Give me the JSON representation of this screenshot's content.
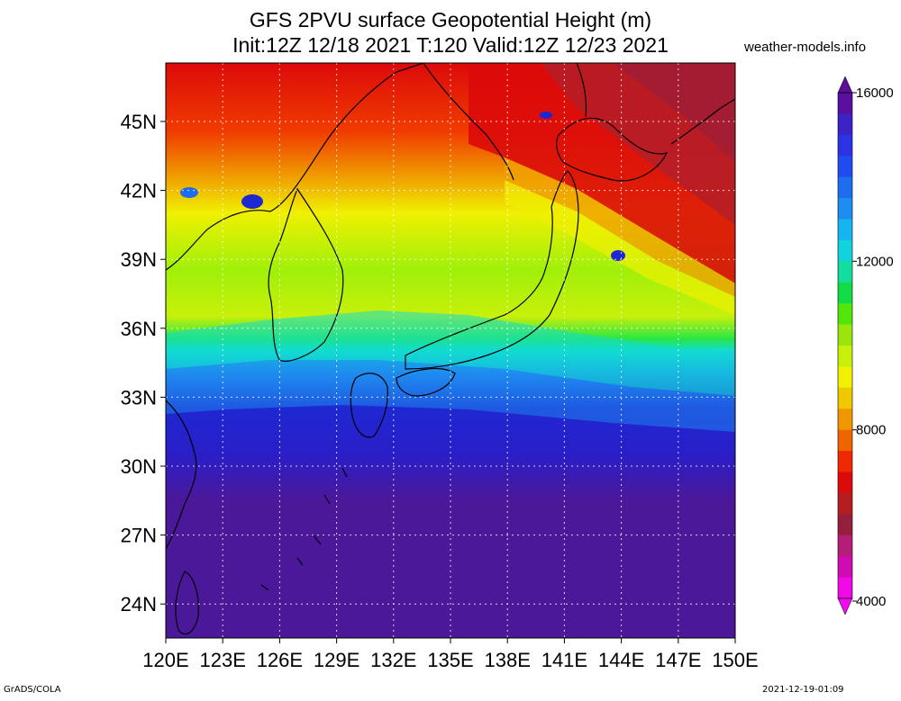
{
  "title_line1": "GFS 2PVU surface Geopotential Height (m)",
  "title_line2": "Init:12Z 12/18 2021 T:120 Valid:12Z 12/23 2021",
  "site": "weather-models.info",
  "footer_left": "GrADS/COLA",
  "footer_right": "2021-12-19-01:09",
  "lat_labels": [
    "45N",
    "42N",
    "39N",
    "36N",
    "33N",
    "30N",
    "27N",
    "24N"
  ],
  "lon_labels": [
    "120E",
    "123E",
    "126E",
    "129E",
    "132E",
    "135E",
    "138E",
    "141E",
    "144E",
    "147E",
    "150E"
  ],
  "colorbar": {
    "labels": [
      "16000",
      "12000",
      "8000",
      "4000"
    ],
    "colors": [
      "#5a0fa0",
      "#3d22c8",
      "#2a34e6",
      "#1e4cf0",
      "#1e6cf0",
      "#1e8cf0",
      "#16b4f0",
      "#12d2dc",
      "#12dca0",
      "#12dc46",
      "#52e60a",
      "#9be60a",
      "#c8f00a",
      "#f0f000",
      "#f0c800",
      "#f09600",
      "#f06400",
      "#f02800",
      "#dc0a0a",
      "#b41e1e",
      "#961e3c",
      "#b41e78",
      "#d20ab4",
      "#f00ae6"
    ],
    "arrow_top_color": "#5a0f96",
    "arrow_bottom_color": "#f00af0"
  },
  "field_colors": {
    "deep": "#4b189a",
    "blue": "#1e28d2",
    "lightblue": "#1e8cf0",
    "cyan": "#12dcd2",
    "green": "#28e646",
    "lime": "#a0f00a",
    "yellow": "#f0f000",
    "orange": "#f0a000",
    "red": "#f03c00",
    "darkred": "#dc0a0a",
    "maroon": "#b41e28"
  }
}
